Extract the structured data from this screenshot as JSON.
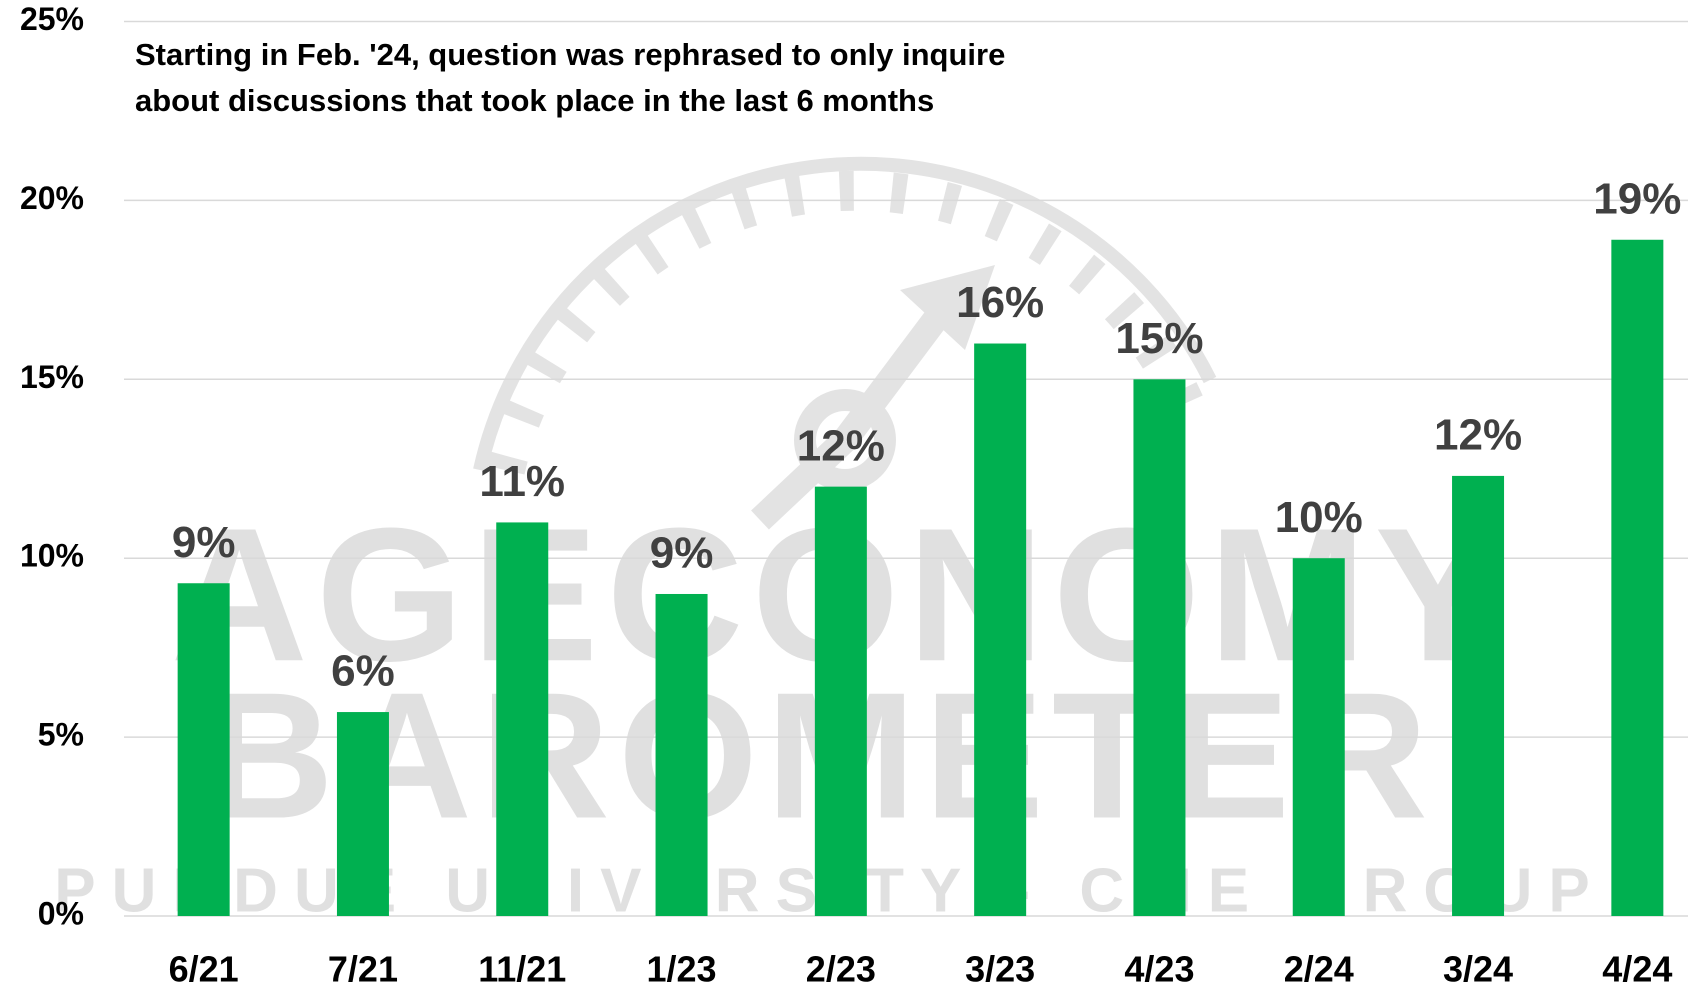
{
  "chart_data": {
    "type": "bar",
    "annotation": [
      "Starting in Feb. '24, question was rephrased to only inquire",
      "about discussions that took place in the last 6 months"
    ],
    "watermark": [
      "AGECONOMY",
      "BAROMETER",
      "PURDUE UNIVERSITY - CME GROUP"
    ],
    "categories": [
      "6/21",
      "7/21",
      "11/21",
      "1/23",
      "2/23",
      "3/23",
      "4/23",
      "2/24",
      "3/24",
      "4/24"
    ],
    "values": [
      9.3,
      5.7,
      11.0,
      9.0,
      12.0,
      16.0,
      15.0,
      10.0,
      12.3,
      18.9
    ],
    "value_labels": [
      "9%",
      "6%",
      "11%",
      "9%",
      "12%",
      "16%",
      "15%",
      "10%",
      "12%",
      "19%"
    ],
    "color": "#00b050",
    "ylim": [
      0,
      25
    ],
    "yticks": [
      {
        "value": 0,
        "label": "0%"
      },
      {
        "value": 5,
        "label": "5%"
      },
      {
        "value": 10,
        "label": "10%"
      },
      {
        "value": 15,
        "label": "15%"
      },
      {
        "value": 20,
        "label": "20%"
      },
      {
        "value": 25,
        "label": "25%"
      }
    ],
    "grid": true
  }
}
